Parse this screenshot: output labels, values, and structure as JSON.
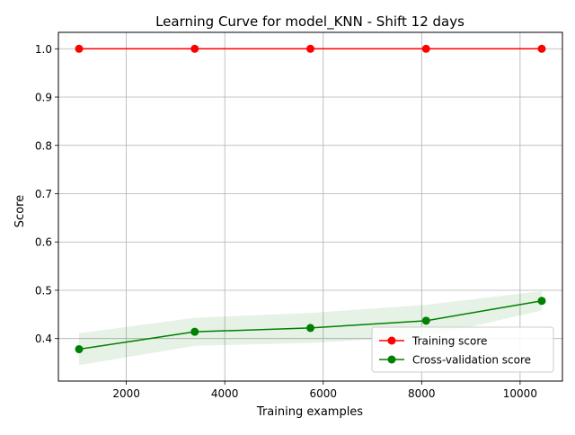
{
  "chart_data": {
    "type": "line",
    "title": "Learning Curve for model_KNN - Shift 12 days",
    "xlabel": "Training examples",
    "ylabel": "Score",
    "xlim": [
      620,
      10860
    ],
    "ylim": [
      0.312,
      1.034
    ],
    "xticks": [
      2000,
      4000,
      6000,
      8000,
      10000
    ],
    "yticks": [
      0.4,
      0.5,
      0.6,
      0.7,
      0.8,
      0.9,
      1.0
    ],
    "grid": true,
    "legend_position": "lower-right",
    "x": [
      1040,
      3390,
      5740,
      8090,
      10440
    ],
    "series": [
      {
        "name": "Training score",
        "color": "#ff0000",
        "values": [
          1.0,
          1.0,
          1.0,
          1.0,
          1.0
        ],
        "band_lower": [
          1.0,
          1.0,
          1.0,
          1.0,
          1.0
        ],
        "band_upper": [
          1.0,
          1.0,
          1.0,
          1.0,
          1.0
        ]
      },
      {
        "name": "Cross-validation score",
        "color": "#008000",
        "values": [
          0.378,
          0.414,
          0.422,
          0.437,
          0.478
        ],
        "band_lower": [
          0.345,
          0.385,
          0.391,
          0.404,
          0.458
        ],
        "band_upper": [
          0.411,
          0.443,
          0.453,
          0.47,
          0.498
        ]
      }
    ]
  }
}
